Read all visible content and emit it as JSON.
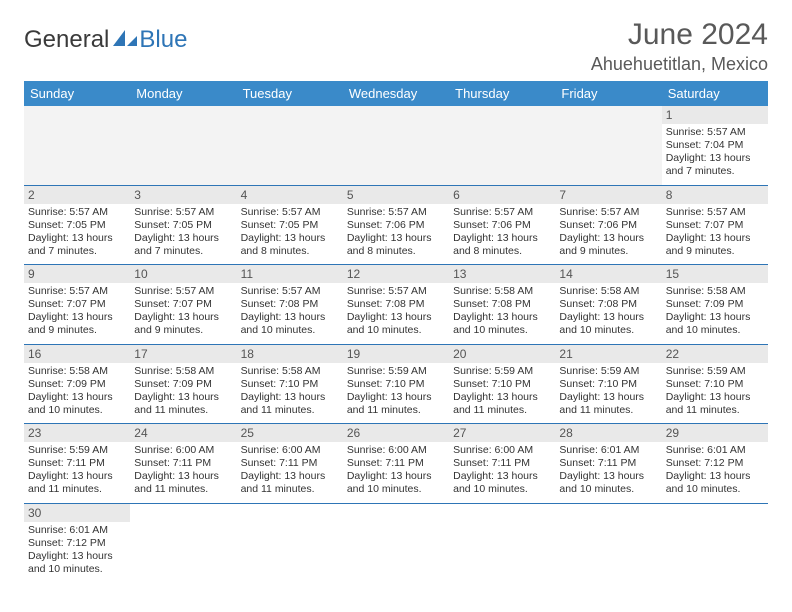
{
  "brand": {
    "part1": "General",
    "part2": "Blue"
  },
  "title": "June 2024",
  "location": "Ahuehuetitlan, Mexico",
  "colors": {
    "header_bg": "#3a8ac9",
    "header_text": "#ffffff",
    "border": "#2e75b6",
    "daynum_bg": "#e9e9e9",
    "text": "#333333",
    "title_text": "#595959"
  },
  "weekdays": [
    "Sunday",
    "Monday",
    "Tuesday",
    "Wednesday",
    "Thursday",
    "Friday",
    "Saturday"
  ],
  "weeks": [
    [
      null,
      null,
      null,
      null,
      null,
      null,
      {
        "n": "1",
        "sr": "Sunrise: 5:57 AM",
        "ss": "Sunset: 7:04 PM",
        "d1": "Daylight: 13 hours",
        "d2": "and 7 minutes."
      }
    ],
    [
      {
        "n": "2",
        "sr": "Sunrise: 5:57 AM",
        "ss": "Sunset: 7:05 PM",
        "d1": "Daylight: 13 hours",
        "d2": "and 7 minutes."
      },
      {
        "n": "3",
        "sr": "Sunrise: 5:57 AM",
        "ss": "Sunset: 7:05 PM",
        "d1": "Daylight: 13 hours",
        "d2": "and 7 minutes."
      },
      {
        "n": "4",
        "sr": "Sunrise: 5:57 AM",
        "ss": "Sunset: 7:05 PM",
        "d1": "Daylight: 13 hours",
        "d2": "and 8 minutes."
      },
      {
        "n": "5",
        "sr": "Sunrise: 5:57 AM",
        "ss": "Sunset: 7:06 PM",
        "d1": "Daylight: 13 hours",
        "d2": "and 8 minutes."
      },
      {
        "n": "6",
        "sr": "Sunrise: 5:57 AM",
        "ss": "Sunset: 7:06 PM",
        "d1": "Daylight: 13 hours",
        "d2": "and 8 minutes."
      },
      {
        "n": "7",
        "sr": "Sunrise: 5:57 AM",
        "ss": "Sunset: 7:06 PM",
        "d1": "Daylight: 13 hours",
        "d2": "and 9 minutes."
      },
      {
        "n": "8",
        "sr": "Sunrise: 5:57 AM",
        "ss": "Sunset: 7:07 PM",
        "d1": "Daylight: 13 hours",
        "d2": "and 9 minutes."
      }
    ],
    [
      {
        "n": "9",
        "sr": "Sunrise: 5:57 AM",
        "ss": "Sunset: 7:07 PM",
        "d1": "Daylight: 13 hours",
        "d2": "and 9 minutes."
      },
      {
        "n": "10",
        "sr": "Sunrise: 5:57 AM",
        "ss": "Sunset: 7:07 PM",
        "d1": "Daylight: 13 hours",
        "d2": "and 9 minutes."
      },
      {
        "n": "11",
        "sr": "Sunrise: 5:57 AM",
        "ss": "Sunset: 7:08 PM",
        "d1": "Daylight: 13 hours",
        "d2": "and 10 minutes."
      },
      {
        "n": "12",
        "sr": "Sunrise: 5:57 AM",
        "ss": "Sunset: 7:08 PM",
        "d1": "Daylight: 13 hours",
        "d2": "and 10 minutes."
      },
      {
        "n": "13",
        "sr": "Sunrise: 5:58 AM",
        "ss": "Sunset: 7:08 PM",
        "d1": "Daylight: 13 hours",
        "d2": "and 10 minutes."
      },
      {
        "n": "14",
        "sr": "Sunrise: 5:58 AM",
        "ss": "Sunset: 7:08 PM",
        "d1": "Daylight: 13 hours",
        "d2": "and 10 minutes."
      },
      {
        "n": "15",
        "sr": "Sunrise: 5:58 AM",
        "ss": "Sunset: 7:09 PM",
        "d1": "Daylight: 13 hours",
        "d2": "and 10 minutes."
      }
    ],
    [
      {
        "n": "16",
        "sr": "Sunrise: 5:58 AM",
        "ss": "Sunset: 7:09 PM",
        "d1": "Daylight: 13 hours",
        "d2": "and 10 minutes."
      },
      {
        "n": "17",
        "sr": "Sunrise: 5:58 AM",
        "ss": "Sunset: 7:09 PM",
        "d1": "Daylight: 13 hours",
        "d2": "and 11 minutes."
      },
      {
        "n": "18",
        "sr": "Sunrise: 5:58 AM",
        "ss": "Sunset: 7:10 PM",
        "d1": "Daylight: 13 hours",
        "d2": "and 11 minutes."
      },
      {
        "n": "19",
        "sr": "Sunrise: 5:59 AM",
        "ss": "Sunset: 7:10 PM",
        "d1": "Daylight: 13 hours",
        "d2": "and 11 minutes."
      },
      {
        "n": "20",
        "sr": "Sunrise: 5:59 AM",
        "ss": "Sunset: 7:10 PM",
        "d1": "Daylight: 13 hours",
        "d2": "and 11 minutes."
      },
      {
        "n": "21",
        "sr": "Sunrise: 5:59 AM",
        "ss": "Sunset: 7:10 PM",
        "d1": "Daylight: 13 hours",
        "d2": "and 11 minutes."
      },
      {
        "n": "22",
        "sr": "Sunrise: 5:59 AM",
        "ss": "Sunset: 7:10 PM",
        "d1": "Daylight: 13 hours",
        "d2": "and 11 minutes."
      }
    ],
    [
      {
        "n": "23",
        "sr": "Sunrise: 5:59 AM",
        "ss": "Sunset: 7:11 PM",
        "d1": "Daylight: 13 hours",
        "d2": "and 11 minutes."
      },
      {
        "n": "24",
        "sr": "Sunrise: 6:00 AM",
        "ss": "Sunset: 7:11 PM",
        "d1": "Daylight: 13 hours",
        "d2": "and 11 minutes."
      },
      {
        "n": "25",
        "sr": "Sunrise: 6:00 AM",
        "ss": "Sunset: 7:11 PM",
        "d1": "Daylight: 13 hours",
        "d2": "and 11 minutes."
      },
      {
        "n": "26",
        "sr": "Sunrise: 6:00 AM",
        "ss": "Sunset: 7:11 PM",
        "d1": "Daylight: 13 hours",
        "d2": "and 10 minutes."
      },
      {
        "n": "27",
        "sr": "Sunrise: 6:00 AM",
        "ss": "Sunset: 7:11 PM",
        "d1": "Daylight: 13 hours",
        "d2": "and 10 minutes."
      },
      {
        "n": "28",
        "sr": "Sunrise: 6:01 AM",
        "ss": "Sunset: 7:11 PM",
        "d1": "Daylight: 13 hours",
        "d2": "and 10 minutes."
      },
      {
        "n": "29",
        "sr": "Sunrise: 6:01 AM",
        "ss": "Sunset: 7:12 PM",
        "d1": "Daylight: 13 hours",
        "d2": "and 10 minutes."
      }
    ],
    [
      {
        "n": "30",
        "sr": "Sunrise: 6:01 AM",
        "ss": "Sunset: 7:12 PM",
        "d1": "Daylight: 13 hours",
        "d2": "and 10 minutes."
      },
      null,
      null,
      null,
      null,
      null,
      null
    ]
  ]
}
